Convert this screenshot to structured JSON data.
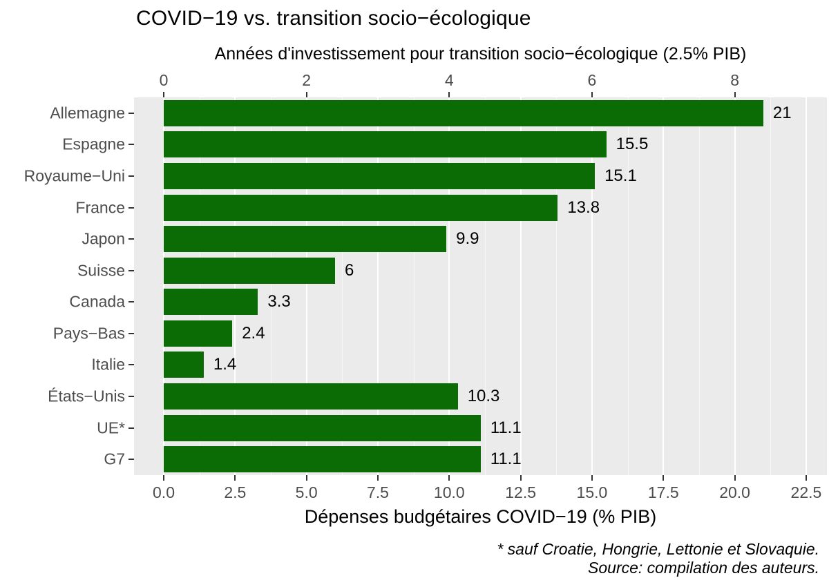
{
  "chart_data": {
    "type": "bar",
    "orientation": "horizontal",
    "title": "COVID−19 vs. transition socio−écologique",
    "categories": [
      "Allemagne",
      "Espagne",
      "Royaume−Uni",
      "France",
      "Japon",
      "Suisse",
      "Canada",
      "Pays−Bas",
      "Italie",
      "États−Unis",
      "UE*",
      "G7"
    ],
    "values": [
      21,
      15.5,
      15.1,
      13.8,
      9.9,
      6,
      3.3,
      2.4,
      1.4,
      10.3,
      11.1,
      11.1
    ],
    "value_labels": [
      "21",
      "15.5",
      "15.1",
      "13.8",
      "9.9",
      "6",
      "3.3",
      "2.4",
      "1.4",
      "10.3",
      "11.1",
      "11.1"
    ],
    "xlabel": "Dépenses budgétaires COVID−19 (% PIB)",
    "x_ticks": [
      "0.0",
      "2.5",
      "5.0",
      "7.5",
      "10.0",
      "12.5",
      "15.0",
      "17.5",
      "20.0",
      "22.5"
    ],
    "xlim": [
      -1.05,
      23.2
    ],
    "grid": true,
    "legend": "none",
    "top_axis": {
      "label": "Années d'investissement pour transition socio−écologique (2.5% PIB)",
      "ticks": [
        "0",
        "2",
        "4",
        "6",
        "8"
      ],
      "scale_factor": 2.5
    },
    "footnotes": [
      "* sauf Croatie, Hongrie, Lettonie et Slovaquie.",
      "Source: compilation des auteurs."
    ],
    "colors": {
      "bar": "#0b6b04",
      "panel_bg": "#ebebeb",
      "grid": "#ffffff",
      "tick_text": "#4d4d4d",
      "tick_mark": "#333333",
      "title_text": "#000000"
    }
  }
}
